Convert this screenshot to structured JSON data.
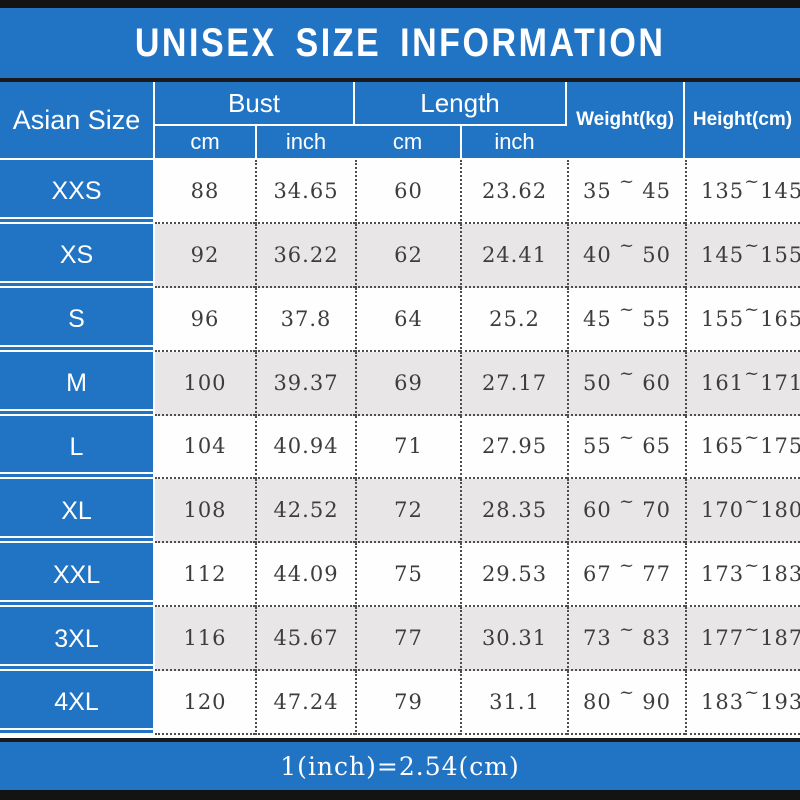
{
  "title": "UNISEX SIZE INFORMATION",
  "footer_note": "1(inch)=2.54(cm)",
  "separator": "~",
  "colors": {
    "accent_blue": "#2173c4",
    "row_alt_gray": "#e8e6e6",
    "row_white": "#fefefe",
    "border_black": "#131313",
    "data_text": "#3d3d3d",
    "header_text": "#ffffff"
  },
  "header": {
    "size_col": "Asian Size",
    "bust": "Bust",
    "length": "Length",
    "cm": "cm",
    "inch": "inch",
    "weight": "Weight(kg)",
    "height": "Height(cm)"
  },
  "rows": [
    {
      "size": "XXS",
      "bust_cm": "88",
      "bust_inch": "34.65",
      "length_cm": "60",
      "length_inch": "23.62",
      "weight": {
        "min": "35",
        "max": "45"
      },
      "height": {
        "min": "135",
        "max": "145"
      }
    },
    {
      "size": "XS",
      "bust_cm": "92",
      "bust_inch": "36.22",
      "length_cm": "62",
      "length_inch": "24.41",
      "weight": {
        "min": "40",
        "max": "50"
      },
      "height": {
        "min": "145",
        "max": "155"
      }
    },
    {
      "size": "S",
      "bust_cm": "96",
      "bust_inch": "37.8",
      "length_cm": "64",
      "length_inch": "25.2",
      "weight": {
        "min": "45",
        "max": "55"
      },
      "height": {
        "min": "155",
        "max": "165"
      }
    },
    {
      "size": "M",
      "bust_cm": "100",
      "bust_inch": "39.37",
      "length_cm": "69",
      "length_inch": "27.17",
      "weight": {
        "min": "50",
        "max": "60"
      },
      "height": {
        "min": "161",
        "max": "171"
      }
    },
    {
      "size": "L",
      "bust_cm": "104",
      "bust_inch": "40.94",
      "length_cm": "71",
      "length_inch": "27.95",
      "weight": {
        "min": "55",
        "max": "65"
      },
      "height": {
        "min": "165",
        "max": "175"
      }
    },
    {
      "size": "XL",
      "bust_cm": "108",
      "bust_inch": "42.52",
      "length_cm": "72",
      "length_inch": "28.35",
      "weight": {
        "min": "60",
        "max": "70"
      },
      "height": {
        "min": "170",
        "max": "180"
      }
    },
    {
      "size": "XXL",
      "bust_cm": "112",
      "bust_inch": "44.09",
      "length_cm": "75",
      "length_inch": "29.53",
      "weight": {
        "min": "67",
        "max": "77"
      },
      "height": {
        "min": "173",
        "max": "183"
      }
    },
    {
      "size": "3XL",
      "bust_cm": "116",
      "bust_inch": "45.67",
      "length_cm": "77",
      "length_inch": "30.31",
      "weight": {
        "min": "73",
        "max": "83"
      },
      "height": {
        "min": "177",
        "max": "187"
      }
    },
    {
      "size": "4XL",
      "bust_cm": "120",
      "bust_inch": "47.24",
      "length_cm": "79",
      "length_inch": "31.1",
      "weight": {
        "min": "80",
        "max": "90"
      },
      "height": {
        "min": "183",
        "max": "193"
      }
    }
  ],
  "chart_data": {
    "type": "table",
    "title": "UNISEX SIZE INFORMATION",
    "columns": [
      "Asian Size",
      "Bust cm",
      "Bust inch",
      "Length cm",
      "Length inch",
      "Weight(kg)",
      "Height(cm)"
    ],
    "rows": [
      [
        "XXS",
        88,
        34.65,
        60,
        23.62,
        "35~45",
        "135~145"
      ],
      [
        "XS",
        92,
        36.22,
        62,
        24.41,
        "40~50",
        "145~155"
      ],
      [
        "S",
        96,
        37.8,
        64,
        25.2,
        "45~55",
        "155~165"
      ],
      [
        "M",
        100,
        39.37,
        69,
        27.17,
        "50~60",
        "161~171"
      ],
      [
        "L",
        104,
        40.94,
        71,
        27.95,
        "55~65",
        "165~175"
      ],
      [
        "XL",
        108,
        42.52,
        72,
        28.35,
        "60~70",
        "170~180"
      ],
      [
        "XXL",
        112,
        44.09,
        75,
        29.53,
        "67~77",
        "173~183"
      ],
      [
        "3XL",
        116,
        45.67,
        77,
        30.31,
        "73~83",
        "177~187"
      ],
      [
        "4XL",
        120,
        47.24,
        79,
        31.1,
        "80~90",
        "183~193"
      ]
    ],
    "footnote": "1(inch)=2.54(cm)"
  }
}
